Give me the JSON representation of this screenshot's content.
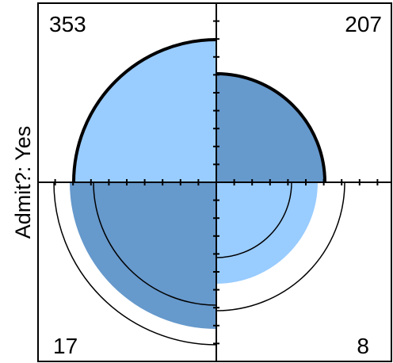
{
  "chart_data": {
    "type": "fourfold",
    "ylabel": "Admit?: Yes",
    "cells": [
      {
        "quadrant": "top-left",
        "count": 353,
        "label": "353"
      },
      {
        "quadrant": "top-right",
        "count": 207,
        "label": "207"
      },
      {
        "quadrant": "bottom-left",
        "count": 17,
        "label": "17"
      },
      {
        "quadrant": "bottom-right",
        "count": 8,
        "label": "8"
      }
    ],
    "colors": {
      "light": "#99ccff",
      "dark": "#6699cc",
      "outline": "#000000",
      "background": "#ffffff"
    }
  }
}
